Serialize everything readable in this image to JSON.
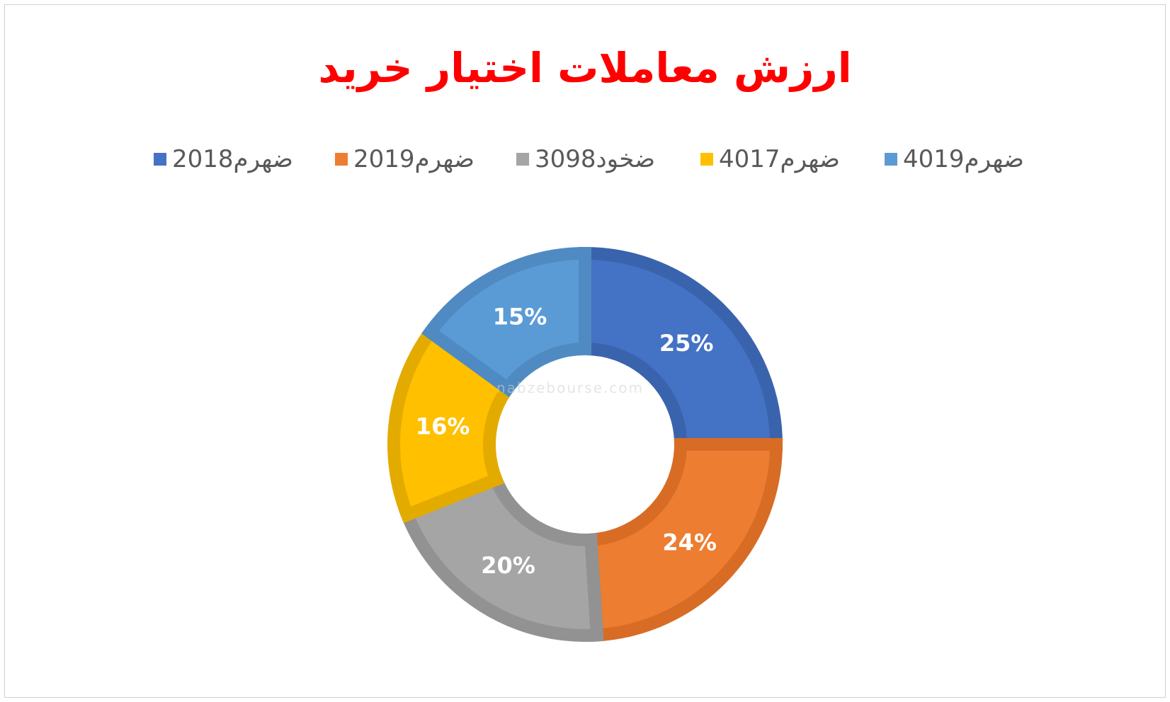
{
  "chart_data": {
    "type": "pie",
    "title": "ارزش معاملات اختیار خرید",
    "legend_position": "top",
    "hole": 0.5,
    "categories": [
      "ضهرم2018",
      "ضهرم2019",
      "ضخود3098",
      "ضهرم4017",
      "ضهرم4019"
    ],
    "values": [
      25,
      24,
      20,
      16,
      15
    ],
    "data_labels": [
      "25%",
      "24%",
      "20%",
      "16%",
      "15%"
    ],
    "colors": [
      "#4472c4",
      "#ed7d31",
      "#a5a5a5",
      "#ffc000",
      "#5b9bd5"
    ],
    "edge_colors": [
      "#3a63ad",
      "#d86c25",
      "#929292",
      "#e3ab00",
      "#4f8bc2"
    ]
  },
  "watermark": {
    "text": "nabzebourse.com"
  }
}
